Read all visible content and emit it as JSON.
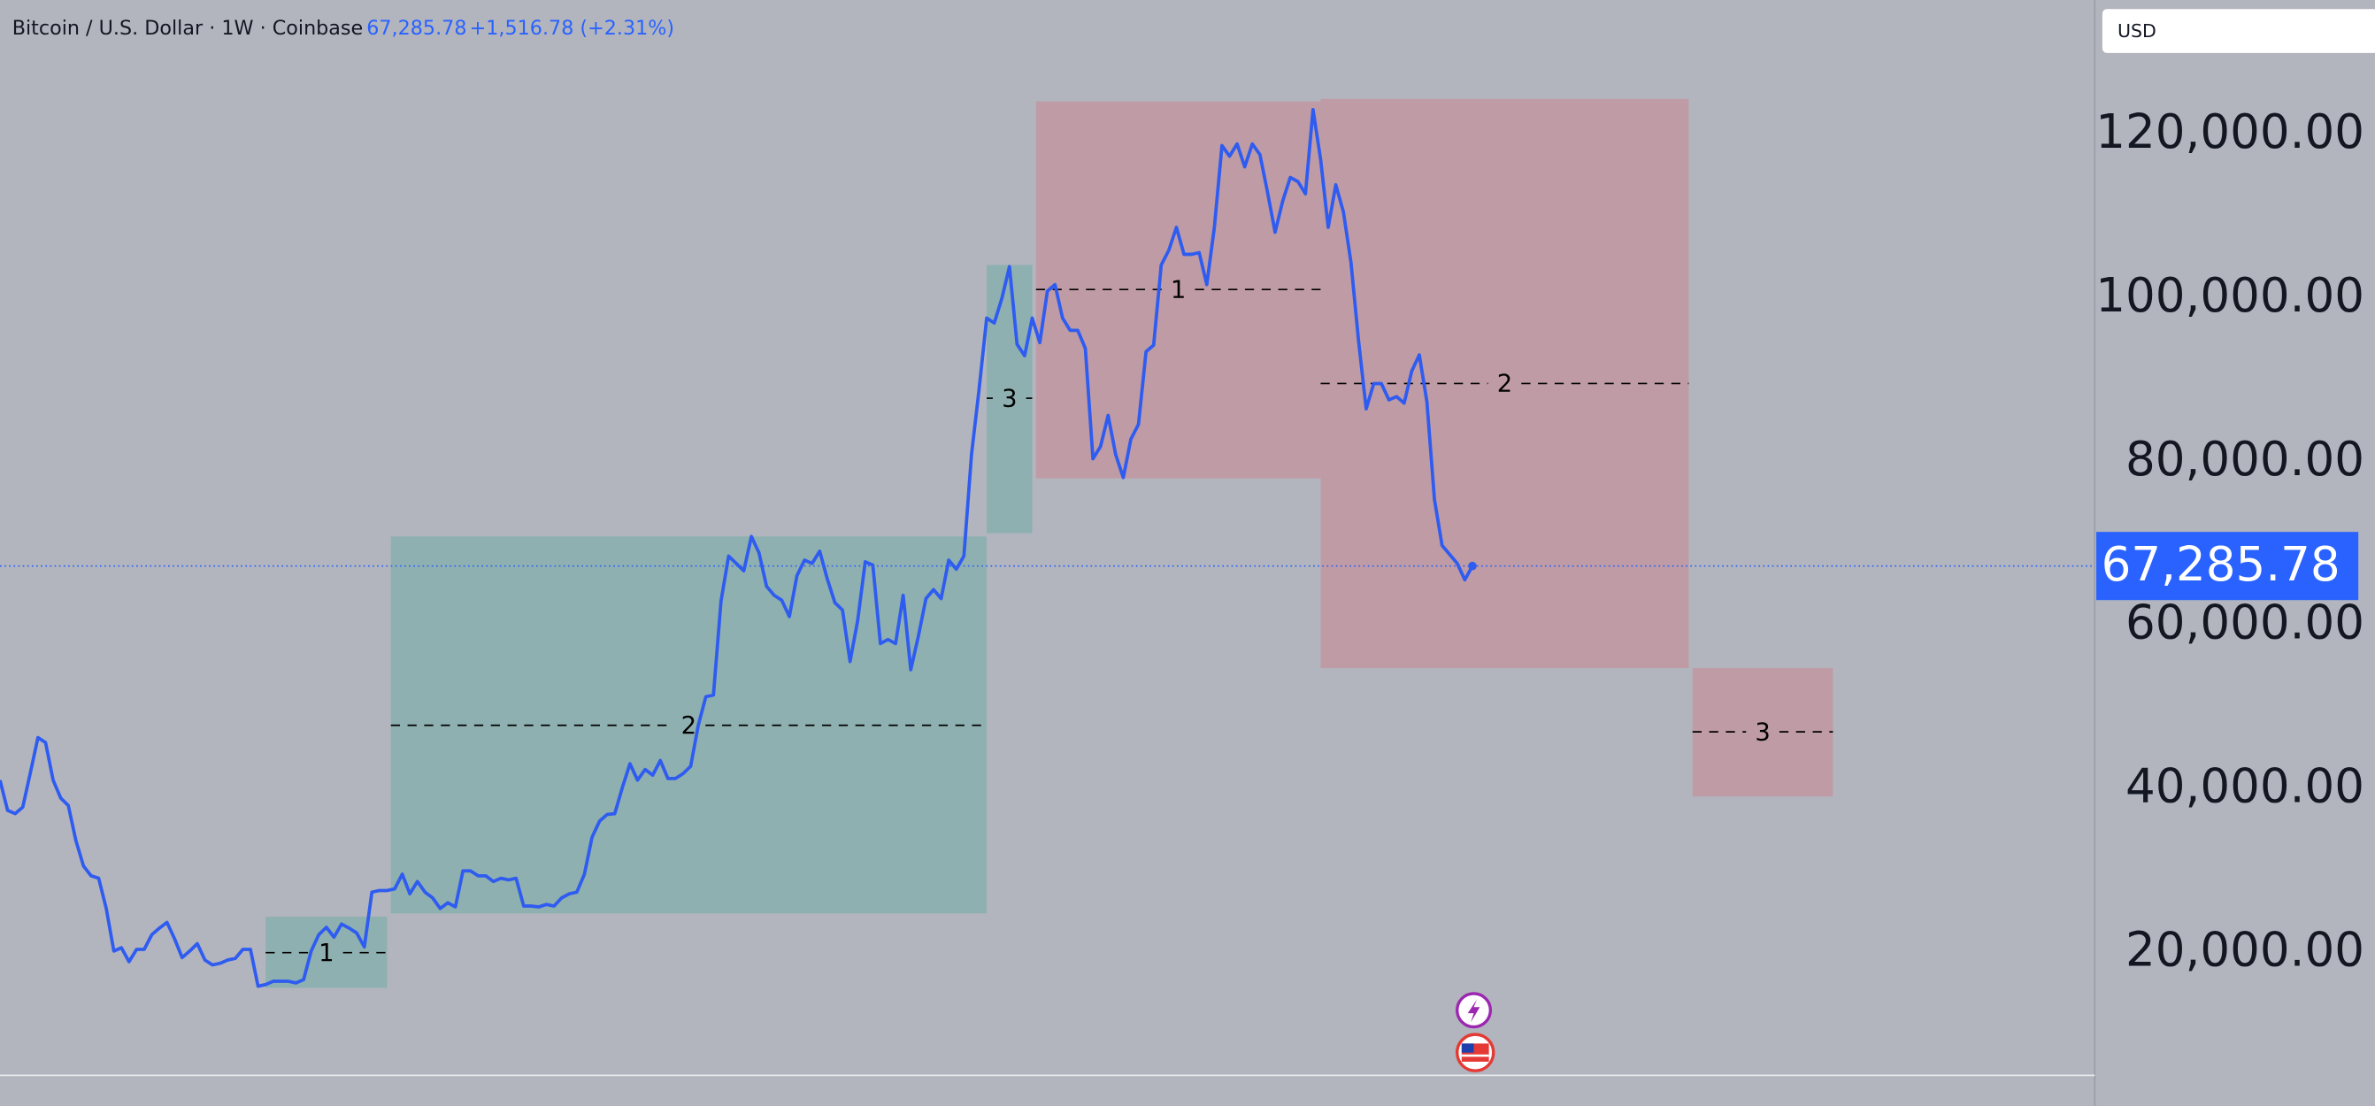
{
  "header": {
    "symbol": "Bitcoin / U.S. Dollar · 1W · Coinbase",
    "price": "67,285.78",
    "change": "+1,516.78 (+2.31%)"
  },
  "currency": "USD",
  "chart_data": {
    "type": "line",
    "series": [
      {
        "name": "BTCUSD",
        "color": "#2f5cf0",
        "values": [
          41100,
          37400,
          37000,
          37800,
          42000,
          46300,
          45700,
          41100,
          38900,
          38000,
          33700,
          30600,
          29400,
          29100,
          25400,
          20200,
          20600,
          18900,
          20400,
          20400,
          22200,
          23000,
          23700,
          21700,
          19400,
          20200,
          21100,
          19100,
          18500,
          18700,
          19100,
          19300,
          20400,
          20400,
          15900,
          16100,
          16500,
          16500,
          16500,
          16300,
          16700,
          20200,
          22200,
          23100,
          21900,
          23500,
          23000,
          22400,
          20700,
          27400,
          27600,
          27600,
          27800,
          29600,
          27200,
          28700,
          27400,
          26700,
          25400,
          26100,
          25600,
          30000,
          30000,
          29400,
          29400,
          28700,
          29100,
          28900,
          29100,
          25700,
          25700,
          25600,
          25900,
          25700,
          26700,
          27200,
          27400,
          29600,
          34100,
          36100,
          36900,
          37000,
          40200,
          43100,
          41100,
          42400,
          41700,
          43500,
          41300,
          41300,
          41900,
          42800,
          47800,
          51300,
          51500,
          63000,
          68500,
          67600,
          66700,
          70900,
          68900,
          64800,
          63700,
          63100,
          61100,
          66100,
          68000,
          67600,
          69100,
          65700,
          62800,
          61900,
          55600,
          60600,
          67800,
          67400,
          57800,
          58300,
          57800,
          63700,
          54600,
          58700,
          63300,
          64400,
          63300,
          68000,
          66900,
          68500,
          80900,
          88900,
          97600,
          97000,
          100000,
          103900,
          94400,
          93000,
          97600,
          94600,
          100900,
          101700,
          97600,
          96100,
          96100,
          93900,
          80400,
          81900,
          85700,
          80900,
          78100,
          82800,
          84600,
          93500,
          94300,
          104100,
          105900,
          108700,
          105400,
          105400,
          105600,
          101700,
          108700,
          118700,
          117400,
          118900,
          116100,
          118900,
          117600,
          113000,
          108100,
          111900,
          114800,
          114300,
          112800,
          123100,
          117000,
          108700,
          113900,
          110600,
          104400,
          94800,
          86500,
          89600,
          89600,
          87600,
          88000,
          87200,
          91100,
          93100,
          87400,
          75400,
          69800,
          68700,
          67600,
          65600,
          67285.78
        ]
      }
    ],
    "last_price": {
      "value": 67285.78,
      "label": "67,285.78"
    },
    "xlim": [
      0,
      276
    ],
    "ylim": [
      5000,
      136500
    ],
    "yticks": [
      {
        "value": 20000,
        "label": "20,000.00"
      },
      {
        "value": 40000,
        "label": "40,000.00"
      },
      {
        "value": 60000,
        "label": "60,000.00"
      },
      {
        "value": 80000,
        "label": "80,000.00"
      },
      {
        "value": 100000,
        "label": "100,000.00"
      },
      {
        "value": 120000,
        "label": "120,000.00"
      }
    ],
    "zones": [
      {
        "label": "1",
        "color": "#8fb0b0",
        "x": [
          35,
          51
        ],
        "y": [
          15700,
          24400
        ],
        "mid": 20000
      },
      {
        "label": "2",
        "color": "#8fb0b0",
        "x": [
          51.5,
          130
        ],
        "y": [
          24800,
          70900
        ],
        "mid": 47800
      },
      {
        "label": "3",
        "color": "#8fb0b0",
        "x": [
          130,
          136
        ],
        "y": [
          71300,
          104100
        ],
        "mid": 87800
      },
      {
        "label": "1",
        "color": "#bf9ba6",
        "x": [
          136.5,
          174
        ],
        "y": [
          78000,
          124100
        ],
        "mid": 101100
      },
      {
        "label": "2",
        "color": "#bf9ba6",
        "x": [
          174,
          222.5
        ],
        "y": [
          54800,
          124400
        ],
        "mid": 89600
      },
      {
        "label": "3",
        "color": "#bf9ba6",
        "x": [
          223,
          241.5
        ],
        "y": [
          39100,
          54800
        ],
        "mid": 47000
      }
    ]
  }
}
